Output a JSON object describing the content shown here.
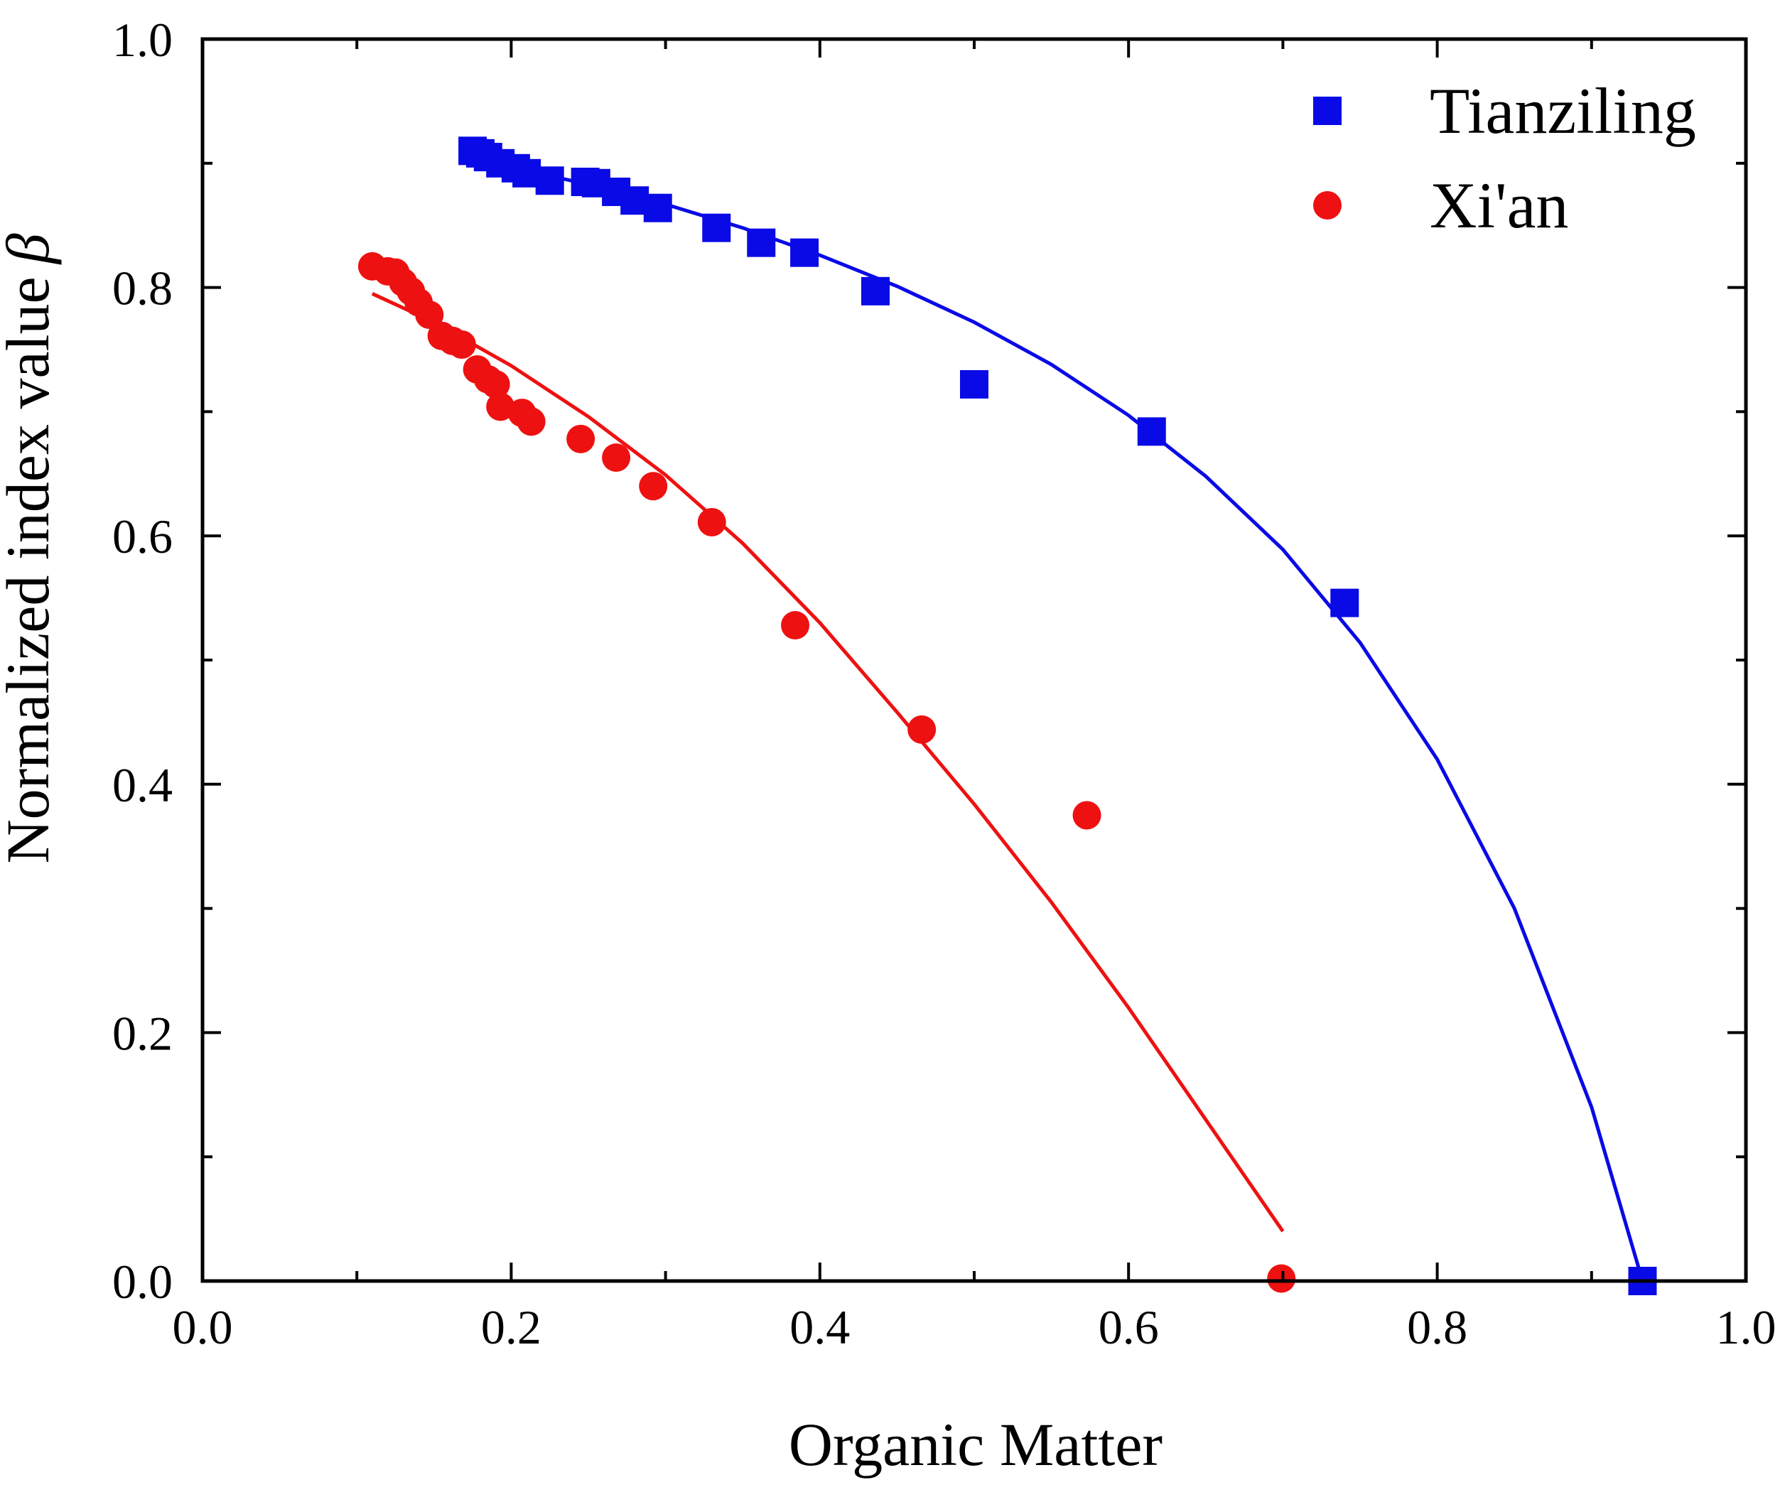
{
  "chart_data": {
    "type": "scatter",
    "title": "",
    "xlabel": "Organic Matter",
    "ylabel": "Normalized index value",
    "ylabel_symbol": "β",
    "xlim": [
      0.0,
      1.0
    ],
    "ylim": [
      0.0,
      1.0
    ],
    "xticks": [
      "0.0",
      "0.2",
      "0.4",
      "0.6",
      "0.8",
      "1.0"
    ],
    "yticks": [
      "0.0",
      "0.2",
      "0.4",
      "0.6",
      "0.8",
      "1.0"
    ],
    "grid": false,
    "legend_position": "top-right",
    "series": [
      {
        "name": "Tianziling",
        "marker": "square",
        "color": "#0a0ae6",
        "points": [
          {
            "x": 0.175,
            "y": 0.91
          },
          {
            "x": 0.18,
            "y": 0.908
          },
          {
            "x": 0.185,
            "y": 0.905
          },
          {
            "x": 0.193,
            "y": 0.9
          },
          {
            "x": 0.203,
            "y": 0.896
          },
          {
            "x": 0.21,
            "y": 0.892
          },
          {
            "x": 0.225,
            "y": 0.886
          },
          {
            "x": 0.248,
            "y": 0.885
          },
          {
            "x": 0.255,
            "y": 0.884
          },
          {
            "x": 0.268,
            "y": 0.877
          },
          {
            "x": 0.28,
            "y": 0.87
          },
          {
            "x": 0.295,
            "y": 0.864
          },
          {
            "x": 0.333,
            "y": 0.848
          },
          {
            "x": 0.362,
            "y": 0.836
          },
          {
            "x": 0.39,
            "y": 0.828
          },
          {
            "x": 0.436,
            "y": 0.797
          },
          {
            "x": 0.5,
            "y": 0.722
          },
          {
            "x": 0.615,
            "y": 0.684
          },
          {
            "x": 0.74,
            "y": 0.546
          },
          {
            "x": 0.933,
            "y": 0.0
          }
        ],
        "fit": [
          {
            "x": 0.17,
            "y": 0.905
          },
          {
            "x": 0.25,
            "y": 0.883
          },
          {
            "x": 0.3,
            "y": 0.867
          },
          {
            "x": 0.35,
            "y": 0.848
          },
          {
            "x": 0.4,
            "y": 0.826
          },
          {
            "x": 0.45,
            "y": 0.801
          },
          {
            "x": 0.5,
            "y": 0.772
          },
          {
            "x": 0.55,
            "y": 0.738
          },
          {
            "x": 0.6,
            "y": 0.697
          },
          {
            "x": 0.65,
            "y": 0.648
          },
          {
            "x": 0.7,
            "y": 0.589
          },
          {
            "x": 0.75,
            "y": 0.514
          },
          {
            "x": 0.8,
            "y": 0.42
          },
          {
            "x": 0.85,
            "y": 0.3
          },
          {
            "x": 0.9,
            "y": 0.14
          },
          {
            "x": 0.933,
            "y": 0.0
          }
        ]
      },
      {
        "name": "Xi'an",
        "marker": "circle",
        "color": "#ee1111",
        "points": [
          {
            "x": 0.11,
            "y": 0.817
          },
          {
            "x": 0.12,
            "y": 0.813
          },
          {
            "x": 0.125,
            "y": 0.812
          },
          {
            "x": 0.13,
            "y": 0.804
          },
          {
            "x": 0.135,
            "y": 0.797
          },
          {
            "x": 0.14,
            "y": 0.788
          },
          {
            "x": 0.147,
            "y": 0.778
          },
          {
            "x": 0.155,
            "y": 0.761
          },
          {
            "x": 0.162,
            "y": 0.757
          },
          {
            "x": 0.168,
            "y": 0.754
          },
          {
            "x": 0.178,
            "y": 0.734
          },
          {
            "x": 0.185,
            "y": 0.726
          },
          {
            "x": 0.19,
            "y": 0.722
          },
          {
            "x": 0.193,
            "y": 0.704
          },
          {
            "x": 0.207,
            "y": 0.699
          },
          {
            "x": 0.213,
            "y": 0.692
          },
          {
            "x": 0.245,
            "y": 0.678
          },
          {
            "x": 0.268,
            "y": 0.663
          },
          {
            "x": 0.292,
            "y": 0.64
          },
          {
            "x": 0.33,
            "y": 0.611
          },
          {
            "x": 0.384,
            "y": 0.528
          },
          {
            "x": 0.466,
            "y": 0.444
          },
          {
            "x": 0.573,
            "y": 0.375
          },
          {
            "x": 0.699,
            "y": 0.002
          }
        ],
        "fit": [
          {
            "x": 0.11,
            "y": 0.795
          },
          {
            "x": 0.15,
            "y": 0.772
          },
          {
            "x": 0.2,
            "y": 0.737
          },
          {
            "x": 0.25,
            "y": 0.696
          },
          {
            "x": 0.3,
            "y": 0.649
          },
          {
            "x": 0.35,
            "y": 0.594
          },
          {
            "x": 0.4,
            "y": 0.53
          },
          {
            "x": 0.45,
            "y": 0.458
          },
          {
            "x": 0.5,
            "y": 0.384
          },
          {
            "x": 0.55,
            "y": 0.305
          },
          {
            "x": 0.6,
            "y": 0.22
          },
          {
            "x": 0.65,
            "y": 0.13
          },
          {
            "x": 0.7,
            "y": 0.04
          }
        ]
      }
    ]
  }
}
